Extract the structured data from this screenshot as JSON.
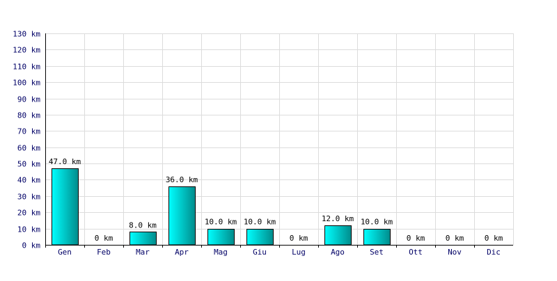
{
  "chart_data": {
    "type": "bar",
    "categories": [
      "Gen",
      "Feb",
      "Mar",
      "Apr",
      "Mag",
      "Giu",
      "Lug",
      "Ago",
      "Set",
      "Ott",
      "Nov",
      "Dic"
    ],
    "values": [
      47,
      0,
      8,
      36,
      10,
      10,
      0,
      12,
      10,
      0,
      0,
      0
    ],
    "data_labels": [
      "47.0 km",
      "0 km",
      "8.0 km",
      "36.0 km",
      "10.0 km",
      "10.0 km",
      "0 km",
      "12.0 km",
      "10.0 km",
      "0 km",
      "0 km",
      "0 km"
    ],
    "yticks": [
      "0 km",
      "10 km",
      "20 km",
      "30 km",
      "40 km",
      "50 km",
      "60 km",
      "70 km",
      "80 km",
      "90 km",
      "100 km",
      "110 km",
      "120 km",
      "130 km"
    ],
    "ylim": [
      0,
      130
    ],
    "title": "",
    "xlabel": "",
    "ylabel": "",
    "grid": true,
    "colors": {
      "bar_light": "#00ffff",
      "bar_dark": "#008c8c",
      "bar_stroke": "#000000",
      "grid": "#dcdcdc",
      "axis": "#000000",
      "tick_text": "#000066"
    }
  }
}
